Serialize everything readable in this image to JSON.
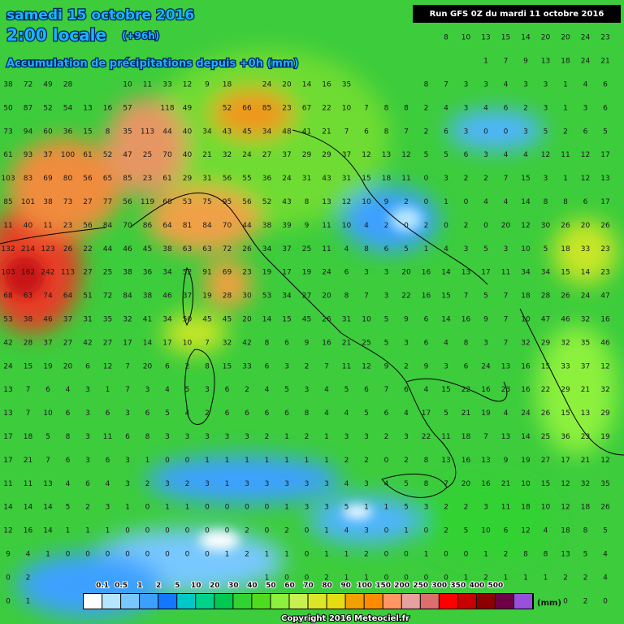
{
  "header": {
    "date": "samedi 15 octobre 2016",
    "time": "2:00 locale",
    "lead": "(+96h)",
    "subtitle": "Accumulation de précipitations depuis +0h (mm)",
    "run": "Run GFS 0Z du mardi 11 octobre 2016"
  },
  "grid": {
    "rows": [
      [
        null,
        null,
        null,
        null,
        null,
        null,
        null,
        null,
        null,
        null,
        null,
        null,
        null,
        null,
        null,
        null,
        null,
        null,
        null,
        null,
        null,
        null,
        "8",
        "10",
        "13",
        "15",
        "14",
        "20",
        "20",
        "24",
        "23"
      ],
      [
        null,
        null,
        null,
        null,
        null,
        null,
        null,
        null,
        null,
        null,
        null,
        null,
        null,
        null,
        null,
        null,
        null,
        null,
        null,
        null,
        null,
        null,
        null,
        null,
        "1",
        "7",
        "9",
        "13",
        "18",
        "24",
        "21"
      ],
      [
        "38",
        "72",
        "49",
        "28",
        null,
        null,
        "10",
        "11",
        "33",
        "12",
        "9",
        "18",
        null,
        "24",
        "20",
        "14",
        "16",
        "35",
        null,
        null,
        null,
        "8",
        "7",
        "3",
        "3",
        "4",
        "3",
        "3",
        "1",
        "4",
        "6"
      ],
      [
        "50",
        "87",
        "52",
        "54",
        "13",
        "16",
        "57",
        null,
        "118",
        "49",
        null,
        "52",
        "66",
        "85",
        "23",
        "67",
        "22",
        "10",
        "7",
        "8",
        "8",
        "2",
        "4",
        "3",
        "4",
        "6",
        "2",
        "3",
        "1",
        "3",
        "6"
      ],
      [
        "73",
        "94",
        "60",
        "36",
        "15",
        "8",
        "35",
        "113",
        "44",
        "40",
        "34",
        "43",
        "45",
        "34",
        "48",
        "41",
        "21",
        "7",
        "6",
        "8",
        "7",
        "2",
        "6",
        "3",
        "0",
        "0",
        "3",
        "5",
        "2",
        "6",
        "5"
      ],
      [
        "61",
        "93",
        "37",
        "100",
        "61",
        "52",
        "47",
        "25",
        "70",
        "40",
        "21",
        "32",
        "24",
        "27",
        "37",
        "29",
        "29",
        "37",
        "12",
        "13",
        "12",
        "5",
        "5",
        "6",
        "3",
        "4",
        "4",
        "12",
        "11",
        "12",
        "17"
      ],
      [
        "103",
        "83",
        "69",
        "80",
        "56",
        "65",
        "85",
        "23",
        "61",
        "29",
        "31",
        "56",
        "55",
        "36",
        "24",
        "31",
        "43",
        "31",
        "15",
        "18",
        "11",
        "0",
        "3",
        "2",
        "2",
        "7",
        "15",
        "3",
        "1",
        "12",
        "13"
      ],
      [
        "85",
        "101",
        "38",
        "73",
        "27",
        "77",
        "56",
        "119",
        "68",
        "53",
        "75",
        "95",
        "56",
        "52",
        "43",
        "8",
        "13",
        "12",
        "10",
        "9",
        "2",
        "0",
        "1",
        "0",
        "4",
        "4",
        "14",
        "8",
        "8",
        "6",
        "17"
      ],
      [
        "11",
        "40",
        "11",
        "23",
        "56",
        "84",
        "70",
        "86",
        "64",
        "81",
        "84",
        "70",
        "44",
        "38",
        "39",
        "9",
        "11",
        "10",
        "4",
        "2",
        "0",
        "2",
        "0",
        "2",
        "0",
        "20",
        "12",
        "30",
        "26",
        "20",
        "26"
      ],
      [
        "132",
        "214",
        "123",
        "26",
        "22",
        "44",
        "46",
        "45",
        "38",
        "63",
        "63",
        "72",
        "26",
        "34",
        "37",
        "25",
        "11",
        "4",
        "8",
        "6",
        "5",
        "1",
        "4",
        "3",
        "5",
        "3",
        "10",
        "5",
        "18",
        "33",
        "23"
      ],
      [
        "103",
        "162",
        "242",
        "113",
        "27",
        "25",
        "38",
        "36",
        "34",
        "52",
        "91",
        "69",
        "23",
        "19",
        "17",
        "19",
        "24",
        "6",
        "3",
        "3",
        "20",
        "16",
        "14",
        "13",
        "17",
        "11",
        "34",
        "34",
        "15",
        "14",
        "23"
      ],
      [
        "68",
        "63",
        "74",
        "64",
        "51",
        "72",
        "84",
        "38",
        "46",
        "37",
        "19",
        "28",
        "30",
        "53",
        "34",
        "27",
        "20",
        "8",
        "7",
        "3",
        "22",
        "16",
        "15",
        "7",
        "5",
        "7",
        "18",
        "28",
        "26",
        "24",
        "47"
      ],
      [
        "53",
        "38",
        "46",
        "37",
        "31",
        "35",
        "32",
        "41",
        "34",
        "50",
        "45",
        "45",
        "20",
        "14",
        "15",
        "45",
        "26",
        "31",
        "10",
        "5",
        "9",
        "6",
        "14",
        "16",
        "9",
        "7",
        "10",
        "47",
        "46",
        "32",
        "16"
      ],
      [
        "42",
        "28",
        "37",
        "27",
        "42",
        "27",
        "17",
        "14",
        "17",
        "10",
        "7",
        "32",
        "42",
        "8",
        "6",
        "9",
        "16",
        "21",
        "25",
        "5",
        "3",
        "6",
        "4",
        "8",
        "3",
        "7",
        "32",
        "29",
        "32",
        "35",
        "46"
      ],
      [
        "24",
        "15",
        "19",
        "20",
        "6",
        "12",
        "7",
        "20",
        "6",
        "2",
        "8",
        "15",
        "33",
        "6",
        "3",
        "2",
        "7",
        "11",
        "12",
        "9",
        "2",
        "9",
        "3",
        "6",
        "24",
        "13",
        "16",
        "15",
        "33",
        "37",
        "12"
      ],
      [
        "13",
        "7",
        "6",
        "4",
        "3",
        "1",
        "7",
        "3",
        "4",
        "5",
        "3",
        "6",
        "2",
        "4",
        "5",
        "3",
        "4",
        "5",
        "6",
        "7",
        "6",
        "4",
        "15",
        "22",
        "16",
        "23",
        "16",
        "22",
        "29",
        "21",
        "32"
      ],
      [
        "13",
        "7",
        "10",
        "6",
        "3",
        "6",
        "3",
        "6",
        "5",
        "4",
        "2",
        "6",
        "6",
        "6",
        "6",
        "8",
        "4",
        "4",
        "5",
        "6",
        "4",
        "17",
        "5",
        "21",
        "19",
        "4",
        "24",
        "26",
        "15",
        "13",
        "29"
      ],
      [
        "17",
        "18",
        "5",
        "8",
        "3",
        "11",
        "6",
        "8",
        "3",
        "3",
        "3",
        "3",
        "3",
        "2",
        "1",
        "2",
        "1",
        "3",
        "3",
        "2",
        "3",
        "22",
        "11",
        "18",
        "7",
        "13",
        "14",
        "25",
        "36",
        "23",
        "19"
      ],
      [
        "17",
        "21",
        "7",
        "6",
        "3",
        "6",
        "3",
        "1",
        "0",
        "0",
        "1",
        "1",
        "1",
        "1",
        "1",
        "1",
        "1",
        "2",
        "2",
        "0",
        "2",
        "8",
        "13",
        "16",
        "13",
        "9",
        "19",
        "27",
        "17",
        "21",
        "12"
      ],
      [
        "11",
        "11",
        "13",
        "4",
        "6",
        "4",
        "3",
        "2",
        "3",
        "2",
        "3",
        "1",
        "3",
        "3",
        "3",
        "3",
        "3",
        "4",
        "3",
        "4",
        "5",
        "8",
        "7",
        "20",
        "16",
        "21",
        "10",
        "15",
        "12",
        "32",
        "35"
      ],
      [
        "14",
        "14",
        "14",
        "5",
        "2",
        "3",
        "1",
        "0",
        "1",
        "1",
        "0",
        "0",
        "0",
        "0",
        "1",
        "3",
        "3",
        "5",
        "1",
        "1",
        "5",
        "3",
        "2",
        "2",
        "3",
        "11",
        "18",
        "10",
        "12",
        "18",
        "26"
      ],
      [
        "12",
        "16",
        "14",
        "1",
        "1",
        "1",
        "0",
        "0",
        "0",
        "0",
        "0",
        "0",
        "2",
        "0",
        "2",
        "0",
        "1",
        "4",
        "3",
        "0",
        "1",
        "0",
        "2",
        "5",
        "10",
        "6",
        "12",
        "4",
        "18",
        "8",
        "5"
      ],
      [
        "9",
        "4",
        "1",
        "0",
        "0",
        "0",
        "0",
        "0",
        "0",
        "0",
        "0",
        "1",
        "2",
        "1",
        "1",
        "0",
        "1",
        "1",
        "2",
        "0",
        "0",
        "1",
        "0",
        "0",
        "1",
        "2",
        "8",
        "8",
        "13",
        "5",
        "4"
      ],
      [
        "0",
        "2",
        null,
        null,
        null,
        null,
        null,
        null,
        null,
        null,
        null,
        null,
        null,
        "1",
        "0",
        "0",
        "2",
        "1",
        "1",
        "0",
        "0",
        "0",
        "0",
        "1",
        "2",
        "1",
        "1",
        "1",
        "2",
        "2",
        "4"
      ],
      [
        "0",
        "1",
        null,
        null,
        null,
        null,
        null,
        null,
        null,
        null,
        null,
        null,
        null,
        null,
        null,
        null,
        null,
        null,
        null,
        null,
        null,
        null,
        null,
        null,
        null,
        null,
        null,
        null,
        "0",
        "2",
        "0"
      ]
    ]
  },
  "legend": {
    "labels": [
      "0.1",
      "0.5",
      "1",
      "2",
      "5",
      "10",
      "20",
      "30",
      "40",
      "50",
      "60",
      "70",
      "80",
      "90",
      "100",
      "150",
      "200",
      "250",
      "300",
      "350",
      "400",
      "500"
    ],
    "colors": [
      "#ffffff",
      "#b4e6ff",
      "#78c8ff",
      "#3ca0ff",
      "#1478ff",
      "#00c8c8",
      "#00d28c",
      "#00c850",
      "#32d232",
      "#50dc1e",
      "#8cf03c",
      "#c8f050",
      "#dce628",
      "#e6dc14",
      "#f0a000",
      "#ff8c00",
      "#ff9664",
      "#e6a0a0",
      "#dc6e6e",
      "#ff0000",
      "#c80000",
      "#8c0000",
      "#6e0046",
      "#9650dc"
    ],
    "unit": "(mm)"
  },
  "footer": {
    "copyright": "Copyright 2016 Meteociel.fr"
  }
}
